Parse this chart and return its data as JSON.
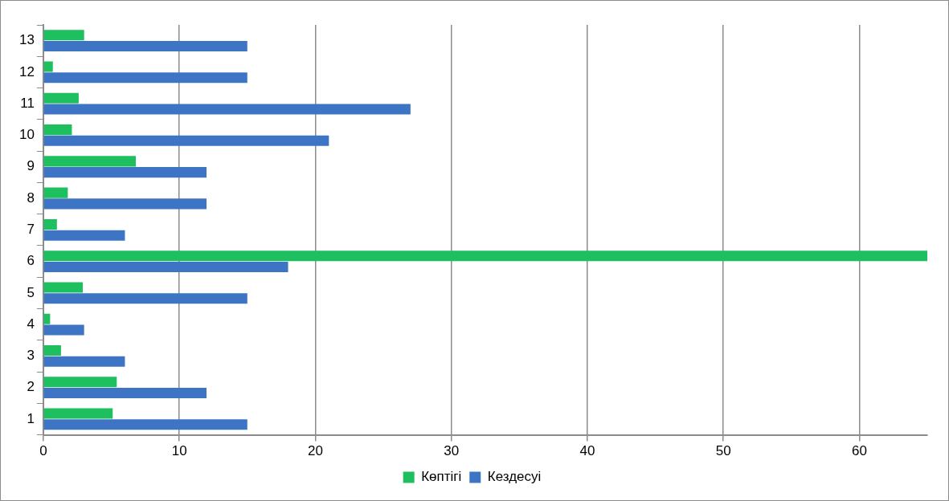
{
  "chart_data": {
    "type": "bar",
    "orientation": "horizontal",
    "categories": [
      "13",
      "12",
      "11",
      "10",
      "9",
      "8",
      "7",
      "6",
      "5",
      "4",
      "3",
      "2",
      "1"
    ],
    "series": [
      {
        "name": "Көптігі",
        "color": "#1ebf5e",
        "values": [
          3,
          0.7,
          2.6,
          2.1,
          6.8,
          1.8,
          1,
          65,
          2.9,
          0.5,
          1.3,
          5.4,
          5.1
        ]
      },
      {
        "name": "Кездесуі",
        "color": "#3e74c4",
        "values": [
          15,
          15,
          27,
          21,
          12,
          12,
          6,
          18,
          15,
          3,
          6,
          12,
          15
        ]
      }
    ],
    "xlim": [
      0,
      65
    ],
    "xticks": [
      0,
      10,
      20,
      30,
      40,
      50,
      60
    ],
    "grid": "x",
    "legend": "bottom"
  }
}
